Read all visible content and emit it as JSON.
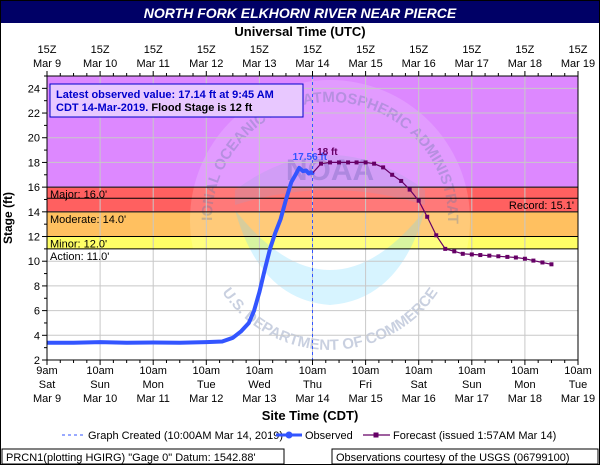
{
  "chart_data": {
    "type": "line",
    "title": "NORTH FORK ELKHORN RIVER NEAR PIERCE",
    "top_axis_title": "Universal Time (UTC)",
    "xlabel": "Site Time (CDT)",
    "ylabel": "Stage (ft)",
    "ylim": [
      2,
      25
    ],
    "yticks": [
      2,
      4,
      6,
      8,
      10,
      12,
      14,
      16,
      18,
      20,
      22,
      24
    ],
    "y_minor_ticks": [
      3,
      5,
      7,
      9,
      11,
      13,
      15,
      17,
      19,
      21,
      23,
      25
    ],
    "top_ticks": [
      {
        "line1": "15Z",
        "line2": "Mar  9"
      },
      {
        "line1": "15Z",
        "line2": "Mar 10"
      },
      {
        "line1": "15Z",
        "line2": "Mar 11"
      },
      {
        "line1": "15Z",
        "line2": "Mar 12"
      },
      {
        "line1": "15Z",
        "line2": "Mar 13"
      },
      {
        "line1": "15Z",
        "line2": "Mar 14"
      },
      {
        "line1": "15Z",
        "line2": "Mar 15"
      },
      {
        "line1": "15Z",
        "line2": "Mar 16"
      },
      {
        "line1": "15Z",
        "line2": "Mar 17"
      },
      {
        "line1": "15Z",
        "line2": "Mar 18"
      },
      {
        "line1": "15Z",
        "line2": "Mar 19"
      }
    ],
    "bottom_ticks": [
      {
        "line1": "9am",
        "line2": "Sat",
        "line3": "Mar 9"
      },
      {
        "line1": "10am",
        "line2": "Sun",
        "line3": "Mar 10"
      },
      {
        "line1": "10am",
        "line2": "Mon",
        "line3": "Mar 11"
      },
      {
        "line1": "10am",
        "line2": "Tue",
        "line3": "Mar 12"
      },
      {
        "line1": "10am",
        "line2": "Wed",
        "line3": "Mar 13"
      },
      {
        "line1": "10am",
        "line2": "Thu",
        "line3": "Mar 14"
      },
      {
        "line1": "10am",
        "line2": "Fri",
        "line3": "Mar 15"
      },
      {
        "line1": "10am",
        "line2": "Sat",
        "line3": "Mar 16"
      },
      {
        "line1": "10am",
        "line2": "Sun",
        "line3": "Mar 17"
      },
      {
        "line1": "10am",
        "line2": "Mon",
        "line3": "Mar 18"
      },
      {
        "line1": "10am",
        "line2": "Tue",
        "line3": "Mar 19"
      }
    ],
    "flood_bands": [
      {
        "name": "Action",
        "from": 11,
        "to": 12,
        "color": "#ffff66"
      },
      {
        "name": "Minor",
        "from": 12,
        "to": 14,
        "color": "#ffc060"
      },
      {
        "name": "Moderate",
        "from": 14,
        "to": 16,
        "color": "#ff6060"
      },
      {
        "name": "Major",
        "from": 16,
        "to": 25,
        "color": "#dd88ff"
      }
    ],
    "threshold_labels": [
      {
        "text": "Major: 16.0'",
        "y": 16.0,
        "side": "left"
      },
      {
        "text": "Moderate: 14.0'",
        "y": 14.0,
        "side": "left"
      },
      {
        "text": "Minor: 12.0'",
        "y": 12.0,
        "side": "left"
      },
      {
        "text": "Action: 11.0'",
        "y": 11.0,
        "side": "left"
      },
      {
        "text": "Record: 15.1'",
        "y": 15.1,
        "side": "right"
      }
    ],
    "info_box": {
      "line1": "Latest observed value: 17.14 ft at 9:45 AM",
      "line2a": "CDT 14-Mar-2019.",
      "line2b": " Flood Stage is 12 ft"
    },
    "annotations": [
      {
        "text": "17.56 ft",
        "x": 4.95,
        "y": 18.2,
        "color": "#3355ff"
      },
      {
        "text": "18 ft",
        "x": 5.28,
        "y": 18.6,
        "color": "#660066"
      }
    ],
    "graph_created_x": 5.0,
    "series": [
      {
        "name": "Observed",
        "color": "#3355ff",
        "x": [
          0.0,
          0.5,
          1.0,
          1.5,
          2.0,
          2.5,
          3.0,
          3.3,
          3.5,
          3.65,
          3.8,
          3.9,
          4.0,
          4.1,
          4.2,
          4.3,
          4.4,
          4.5,
          4.6,
          4.68,
          4.75,
          4.82,
          4.88,
          4.93,
          4.97,
          5.0
        ],
        "y": [
          3.4,
          3.4,
          3.45,
          3.4,
          3.42,
          3.4,
          3.45,
          3.5,
          3.8,
          4.3,
          5.0,
          6.0,
          7.5,
          9.3,
          11.0,
          12.3,
          13.4,
          15.0,
          16.4,
          17.0,
          17.56,
          17.3,
          17.35,
          17.1,
          17.2,
          17.14
        ]
      },
      {
        "name": "Forecast",
        "legend_label": "Forecast (issued 1:57AM Mar 14)",
        "color": "#660066",
        "x": [
          5.0,
          5.16,
          5.33,
          5.5,
          5.67,
          5.83,
          6.0,
          6.16,
          6.33,
          6.5,
          6.67,
          6.83,
          7.0,
          7.16,
          7.33,
          7.5,
          7.67,
          7.83,
          8.0,
          8.16,
          8.33,
          8.5,
          8.67,
          8.83,
          9.0,
          9.16,
          9.33,
          9.5
        ],
        "y": [
          17.14,
          17.9,
          18.0,
          18.0,
          18.0,
          18.0,
          18.0,
          17.9,
          17.6,
          17.0,
          16.5,
          15.8,
          14.9,
          13.6,
          12.1,
          11.0,
          10.8,
          10.6,
          10.55,
          10.5,
          10.45,
          10.4,
          10.35,
          10.3,
          10.2,
          10.05,
          9.9,
          9.75
        ]
      }
    ],
    "legend": {
      "created": "Graph Created (10:00AM Mar 14, 2019)",
      "observed": "Observed",
      "forecast": "Forecast (issued 1:57AM Mar 14)"
    },
    "footer": {
      "left": "PRCN1(plotting HGIRG) \"Gage 0\" Datum: 1542.88'",
      "right": "Observations courtesy of the USGS (06799100)"
    },
    "watermark_text": {
      "top": "NATIONAL OCEANIC AND ATMOSPHERIC ADMINISTRATION",
      "bottom": "U.S. DEPARTMENT OF COMMERCE",
      "center": "NOAA"
    },
    "colors": {
      "header_bg": "#000066",
      "header_text": "#ffffff",
      "plot_bg": "#ffffff",
      "grid": "#c8c8c8",
      "info_box_bg": "#e8c8ff",
      "info_box_border": "#0000cc",
      "info_text": "#0000cc"
    }
  }
}
